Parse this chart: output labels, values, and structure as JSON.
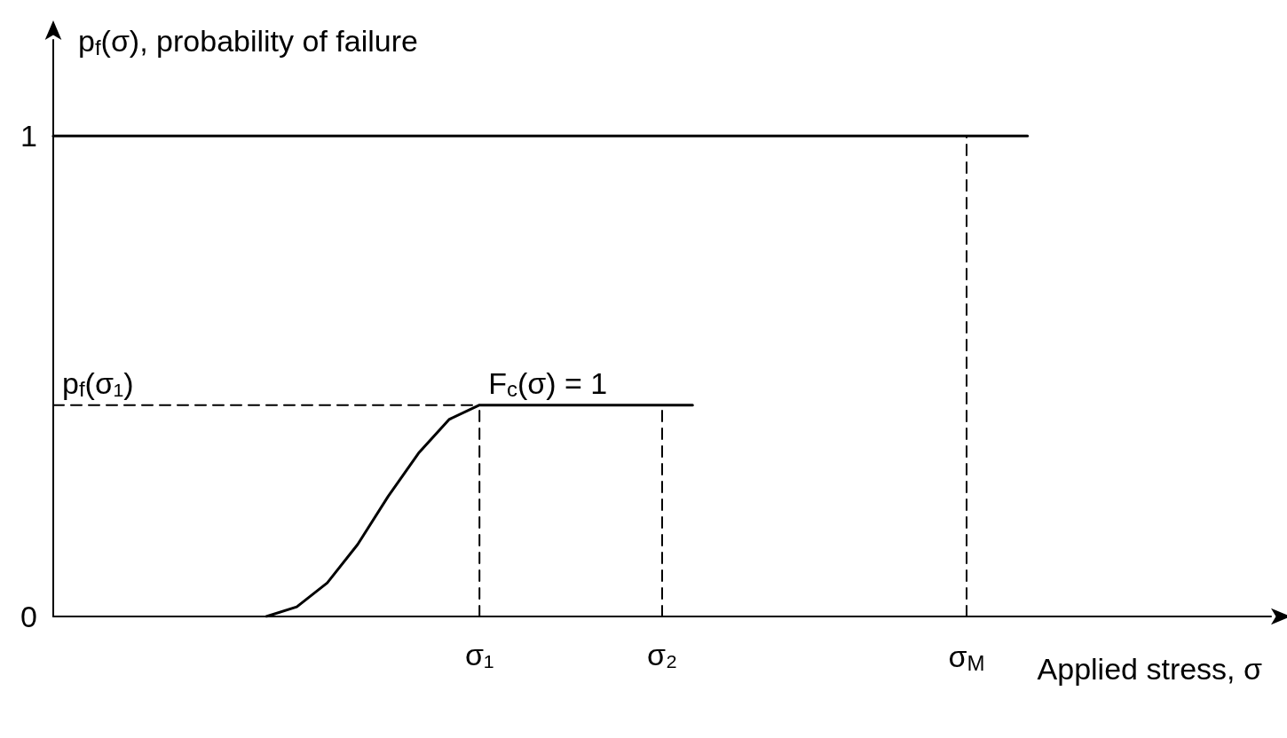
{
  "chart_data": {
    "type": "line",
    "ylabel": "p$_{f}$(σ), probability of failure",
    "xlabel": "Applied stress, σ",
    "categories": [
      null,
      null,
      null,
      null,
      null,
      null,
      null,
      null,
      null,
      null,
      null,
      null,
      null,
      null,
      "σ₁",
      null,
      null,
      null,
      null,
      null,
      "σ₂",
      null,
      null,
      null,
      null,
      null,
      null,
      null,
      null,
      null,
      "σ$_{M}$",
      null,
      null,
      null,
      null,
      null,
      null,
      null,
      null,
      null,
      null
    ],
    "ylim": [
      0,
      1.2
    ],
    "yticks": [
      0,
      1
    ],
    "series": [
      {
        "color": "#000000",
        "line_style": "solid",
        "values": [
          null,
          null,
          null,
          null,
          null,
          null,
          null,
          0,
          0.02,
          0.07,
          0.15,
          0.25,
          0.34,
          0.41,
          0.44,
          0.44,
          0.44,
          0.44,
          0.44,
          0.44,
          0.44,
          0.44,
          null,
          null,
          null,
          null,
          null,
          null,
          null,
          null,
          null,
          null,
          null,
          null,
          null,
          null,
          null,
          null,
          null,
          null,
          null
        ]
      },
      {
        "color": "#000000",
        "line_style": "solid",
        "values": [
          1,
          1,
          1,
          1,
          1,
          1,
          1,
          1,
          1,
          1,
          1,
          1,
          1,
          1,
          1,
          1,
          1,
          1,
          1,
          1,
          1,
          1,
          1,
          1,
          1,
          1,
          1,
          1,
          1,
          1,
          1,
          1,
          1,
          null,
          null,
          null,
          null,
          null,
          null,
          null,
          null
        ]
      },
      {
        "color": "#000000",
        "line_style": "dashed",
        "values": [
          0.44,
          0.44,
          0.44,
          0.44,
          0.44,
          0.44,
          0.44,
          0.44,
          0.44,
          0.44,
          0.44,
          0.44,
          0.44,
          0.44,
          0.44,
          null,
          null,
          null,
          null,
          null,
          null,
          null,
          null,
          null,
          null,
          null,
          null,
          null,
          null,
          null,
          null,
          null,
          null,
          null,
          null,
          null,
          null,
          null,
          null,
          null,
          null
        ]
      },
      {
        "color": "#000000",
        "line_style": "dashed",
        "x": [
          "σ₁",
          "σ₁"
        ],
        "values": [
          0,
          0.44
        ]
      },
      {
        "color": "#000000",
        "line_style": "dashed",
        "x": [
          "σ₂",
          "σ₂"
        ],
        "values": [
          0,
          0.44
        ]
      },
      {
        "color": "#000000",
        "line_style": "dashed",
        "x": [
          "σ$_{M}$",
          "σ$_{M}$"
        ],
        "values": [
          0,
          1
        ]
      }
    ],
    "annotations": [
      {
        "text": "p$_{f}$(σ₁)",
        "y": 0.44
      },
      {
        "text": "F$_{c}$(σ) = 1",
        "x": "σ₁",
        "y": 0.44
      }
    ],
    "marker": "none"
  }
}
